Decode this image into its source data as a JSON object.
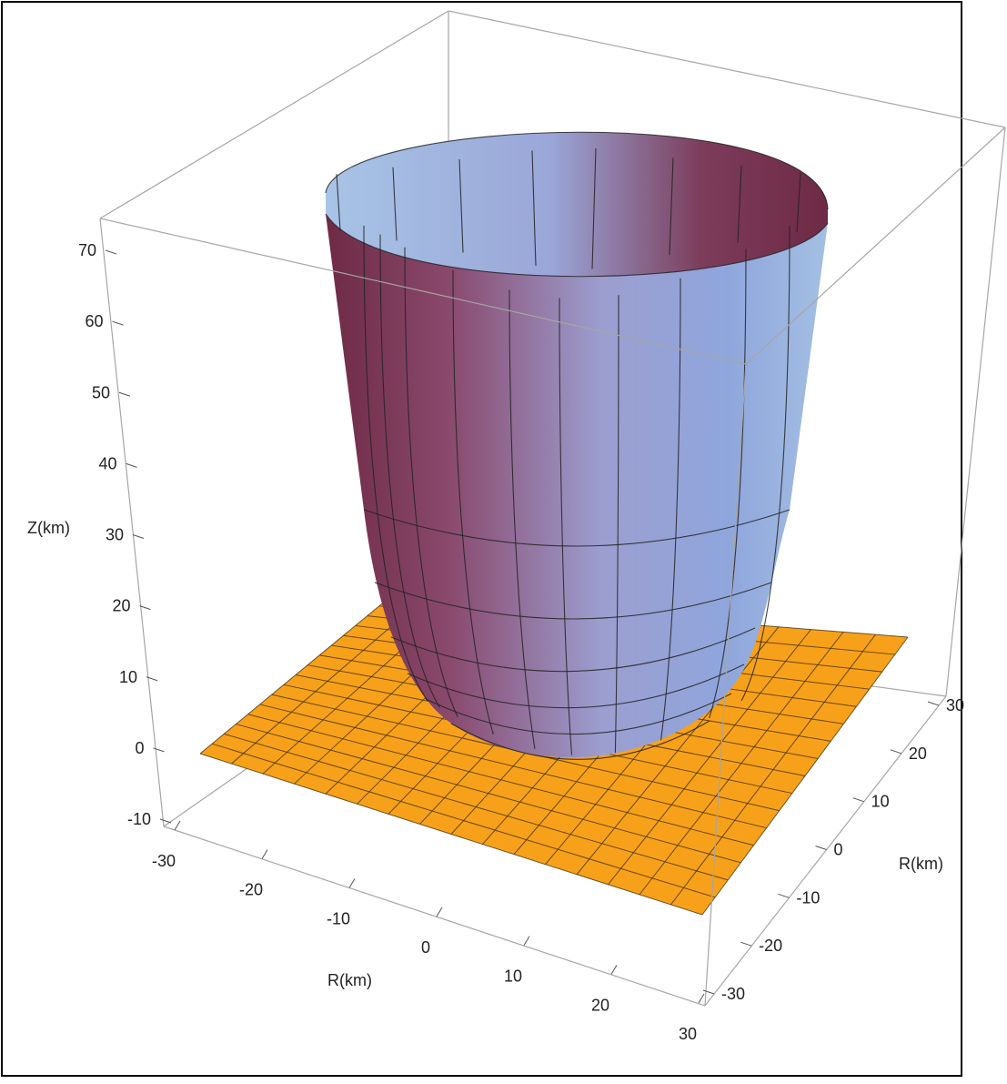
{
  "chart_data": {
    "type": "surface3d",
    "surfaces": [
      {
        "kind": "paraboloid-bowl",
        "description_values": {
          "bottom_z": 0,
          "top_z": 70,
          "top_radius": 25
        },
        "fill_colors": [
          "#9fb6e0",
          "#7a3a55"
        ]
      },
      {
        "kind": "plane",
        "z": 0,
        "x_range": [
          -32,
          32
        ],
        "y_range": [
          -32,
          32
        ],
        "grid_steps": 16,
        "color": "#f7a11a"
      }
    ],
    "axes": {
      "x": {
        "label": "R(km)",
        "ticks": [
          "-30",
          "-20",
          "-10",
          "0",
          "10",
          "20",
          "30"
        ],
        "range": [
          -30,
          30
        ]
      },
      "y": {
        "label": "R(km)",
        "ticks": [
          "-30",
          "-20",
          "-10",
          "0",
          "10",
          "20",
          "30"
        ],
        "range": [
          -30,
          30
        ]
      },
      "z": {
        "label": "Z(km)",
        "ticks": [
          "-10",
          "0",
          "10",
          "20",
          "30",
          "40",
          "50",
          "60",
          "70"
        ],
        "range": [
          -10,
          70
        ]
      }
    },
    "box": true,
    "frame_color": "#000000"
  }
}
